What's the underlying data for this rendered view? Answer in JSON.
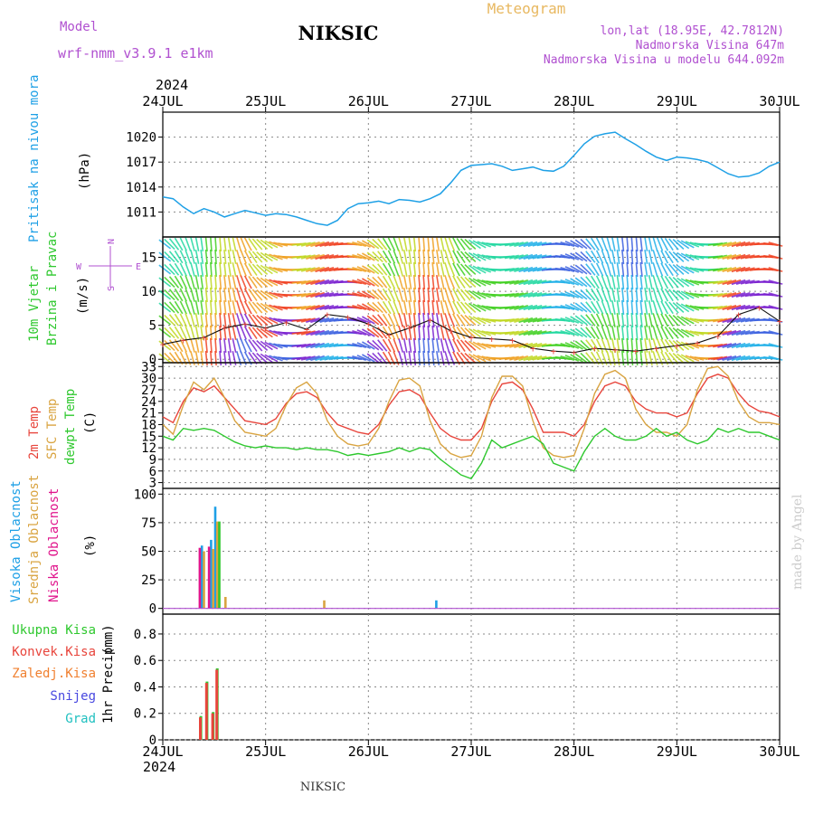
{
  "header": {
    "station": "NIKSIC",
    "model_label": "Model",
    "model_name": "wrf-nmm_v3.9.1  e1km",
    "meteogram": "Meteogram",
    "lonlat": "lon,lat (18.95E, 42.7812N)",
    "altitude": "Nadmorska Visina 647m",
    "model_altitude": "Nadmorska Visina u modelu 644.092m",
    "year": "2024",
    "footer": "NIKSIC",
    "credit": "made by Angel"
  },
  "colors": {
    "pressure": "#1ea0e6",
    "temp2m": "#e8453c",
    "sfc": "#d9a441",
    "dewpt": "#2ec82e",
    "high_cloud": "#1ea0e6",
    "mid_cloud": "#d9a441",
    "low_cloud": "#e0158c",
    "total_rain": "#2ec82e",
    "conv_rain": "#e8453c",
    "ice": "#f08030",
    "snow": "#4848e0",
    "hail": "#20c0c0",
    "model": "#b050d0"
  },
  "chart_data": [
    {
      "type": "line",
      "panel": "pressure",
      "ylabel_1": "Pritisak na nivou mora",
      "ylabel_2": "(hPa)",
      "x_categories": [
        "24JUL",
        "25JUL",
        "26JUL",
        "27JUL",
        "28JUL",
        "29JUL",
        "30JUL"
      ],
      "ylim": [
        1008,
        1023
      ],
      "yticks": [
        1011,
        1014,
        1017,
        1020
      ],
      "grid": true,
      "series": [
        {
          "x": [
            0,
            0.1,
            0.2,
            0.3,
            0.4,
            0.5,
            0.6,
            0.7,
            0.8,
            0.9,
            1.0,
            1.1,
            1.2,
            1.3,
            1.4,
            1.5,
            1.6,
            1.7,
            1.8,
            1.9,
            2.0,
            2.1,
            2.2,
            2.3,
            2.4,
            2.5,
            2.6,
            2.7,
            2.8,
            2.9,
            3.0,
            3.1,
            3.2,
            3.3,
            3.4,
            3.5,
            3.6,
            3.7,
            3.8,
            3.9,
            4.0,
            4.1,
            4.2,
            4.3,
            4.4,
            4.5,
            4.6,
            4.7,
            4.8,
            4.9,
            5.0,
            5.1,
            5.2,
            5.3,
            5.4,
            5.5,
            5.6,
            5.7,
            5.8,
            5.9,
            6.0
          ],
          "y": [
            1012.8,
            1012.6,
            1011.6,
            1010.8,
            1011.4,
            1011.0,
            1010.4,
            1010.8,
            1011.2,
            1010.9,
            1010.6,
            1010.8,
            1010.7,
            1010.4,
            1010.0,
            1009.6,
            1009.4,
            1010.0,
            1011.4,
            1012.0,
            1012.1,
            1012.3,
            1012.0,
            1012.5,
            1012.4,
            1012.2,
            1012.6,
            1013.2,
            1014.5,
            1016.0,
            1016.6,
            1016.7,
            1016.8,
            1016.5,
            1016.0,
            1016.2,
            1016.4,
            1016.0,
            1015.9,
            1016.5,
            1017.8,
            1019.2,
            1020.1,
            1020.4,
            1020.6,
            1019.8,
            1019.1,
            1018.3,
            1017.6,
            1017.2,
            1017.6,
            1017.5,
            1017.3,
            1017.0,
            1016.3,
            1015.6,
            1015.2,
            1015.3,
            1015.7,
            1016.5,
            1017.0
          ]
        }
      ]
    },
    {
      "type": "line",
      "panel": "wind",
      "ylabel_1": "10m Vjetar",
      "ylabel_2": "Brzina i Pravac",
      "ylabel_3": "(m/s)",
      "compass": {
        "n": "N",
        "s": "S",
        "e": "E",
        "w": "W"
      },
      "ylim": [
        -0.5,
        18
      ],
      "yticks": [
        0,
        5,
        10,
        15
      ],
      "grid": true,
      "series": [
        {
          "x": [
            0,
            0.2,
            0.4,
            0.6,
            0.8,
            1.0,
            1.2,
            1.4,
            1.6,
            1.8,
            2.0,
            2.2,
            2.4,
            2.6,
            2.8,
            3.0,
            3.2,
            3.4,
            3.6,
            3.8,
            4.0,
            4.2,
            4.4,
            4.6,
            4.8,
            5.0,
            5.2,
            5.4,
            5.6,
            5.8,
            6.0
          ],
          "y": [
            2.2,
            2.8,
            3.2,
            4.6,
            5.2,
            4.6,
            5.4,
            4.4,
            6.6,
            6.2,
            5.2,
            3.6,
            4.6,
            5.8,
            4.2,
            3.2,
            3.0,
            2.8,
            1.6,
            1.2,
            1.0,
            1.6,
            1.4,
            1.2,
            1.6,
            2.0,
            2.4,
            3.4,
            6.6,
            7.6,
            5.6
          ]
        }
      ]
    },
    {
      "type": "line",
      "panel": "temperature",
      "ylabel_1": "2m Temp",
      "ylabel_2": "SFC Temp",
      "ylabel_3": "dewpt Temp",
      "ylabel_4": "(C)",
      "ylim": [
        1.5,
        34
      ],
      "yticks": [
        3,
        6,
        9,
        12,
        15,
        18,
        21,
        24,
        27,
        30,
        33
      ],
      "grid": true,
      "series": [
        {
          "name": "2m Temp",
          "x": [
            0,
            0.1,
            0.2,
            0.3,
            0.4,
            0.5,
            0.6,
            0.7,
            0.8,
            0.9,
            1.0,
            1.1,
            1.2,
            1.3,
            1.4,
            1.5,
            1.6,
            1.7,
            1.8,
            1.9,
            2.0,
            2.1,
            2.2,
            2.3,
            2.4,
            2.5,
            2.6,
            2.7,
            2.8,
            2.9,
            3.0,
            3.1,
            3.2,
            3.3,
            3.4,
            3.5,
            3.6,
            3.7,
            3.8,
            3.9,
            4.0,
            4.1,
            4.2,
            4.3,
            4.4,
            4.5,
            4.6,
            4.7,
            4.8,
            4.9,
            5.0,
            5.1,
            5.2,
            5.3,
            5.4,
            5.5,
            5.6,
            5.7,
            5.8,
            5.9,
            6.0
          ],
          "y": [
            20,
            18.5,
            24,
            27.5,
            26.5,
            28,
            25,
            22,
            19,
            18.5,
            18,
            19.5,
            23.5,
            26,
            26.5,
            25,
            21,
            18,
            17,
            16,
            15.5,
            18,
            23,
            26.5,
            27,
            25.5,
            21,
            17,
            15,
            14,
            14,
            17,
            24,
            28.5,
            29,
            27,
            22,
            16,
            16,
            16,
            15,
            18,
            24,
            28,
            29,
            28,
            24,
            22,
            21,
            21,
            20,
            21,
            26,
            30,
            31,
            30,
            26,
            23,
            21.5,
            21,
            20
          ]
        },
        {
          "name": "SFC Temp",
          "x": [
            0,
            0.1,
            0.2,
            0.3,
            0.4,
            0.5,
            0.6,
            0.7,
            0.8,
            0.9,
            1.0,
            1.1,
            1.2,
            1.3,
            1.4,
            1.5,
            1.6,
            1.7,
            1.8,
            1.9,
            2.0,
            2.1,
            2.2,
            2.3,
            2.4,
            2.5,
            2.6,
            2.7,
            2.8,
            2.9,
            3.0,
            3.1,
            3.2,
            3.3,
            3.4,
            3.5,
            3.6,
            3.7,
            3.8,
            3.9,
            4.0,
            4.1,
            4.2,
            4.3,
            4.4,
            4.5,
            4.6,
            4.7,
            4.8,
            4.9,
            5.0,
            5.1,
            5.2,
            5.3,
            5.4,
            5.5,
            5.6,
            5.7,
            5.8,
            5.9,
            6.0
          ],
          "y": [
            18,
            15.5,
            23,
            29,
            27,
            30,
            25,
            19,
            16,
            15.5,
            15,
            17,
            23,
            27.5,
            29,
            26,
            19,
            15,
            13,
            12.5,
            13,
            17,
            24,
            29.5,
            30,
            28,
            19,
            13,
            10.5,
            9.5,
            10,
            15,
            25,
            30.5,
            30.5,
            28,
            19,
            12,
            10,
            9.5,
            10,
            17,
            26,
            31,
            32,
            30,
            22,
            18,
            16,
            16,
            15,
            18,
            27,
            32.5,
            33,
            30.5,
            24,
            20,
            18.5,
            18.5,
            18
          ]
        },
        {
          "name": "dewpt Temp",
          "x": [
            0,
            0.1,
            0.2,
            0.3,
            0.4,
            0.5,
            0.6,
            0.7,
            0.8,
            0.9,
            1.0,
            1.1,
            1.2,
            1.3,
            1.4,
            1.5,
            1.6,
            1.7,
            1.8,
            1.9,
            2.0,
            2.1,
            2.2,
            2.3,
            2.4,
            2.5,
            2.6,
            2.7,
            2.8,
            2.9,
            3.0,
            3.1,
            3.2,
            3.3,
            3.4,
            3.5,
            3.6,
            3.7,
            3.8,
            3.9,
            4.0,
            4.1,
            4.2,
            4.3,
            4.4,
            4.5,
            4.6,
            4.7,
            4.8,
            4.9,
            5.0,
            5.1,
            5.2,
            5.3,
            5.4,
            5.5,
            5.6,
            5.7,
            5.8,
            5.9,
            6.0
          ],
          "y": [
            15,
            14,
            17,
            16.5,
            17,
            16.5,
            15,
            13.5,
            12.5,
            12,
            12.5,
            12,
            12,
            11.5,
            12,
            11.5,
            11.5,
            11,
            10,
            10.5,
            10,
            10.5,
            11,
            12,
            11,
            12,
            11.5,
            9,
            7,
            5,
            4,
            8,
            14,
            12,
            13,
            14,
            15,
            13,
            8,
            7,
            6,
            11,
            15,
            17,
            15,
            14,
            14,
            15,
            17,
            15,
            16,
            14,
            13,
            14,
            17,
            16,
            17,
            16,
            16,
            15,
            14
          ]
        }
      ]
    },
    {
      "type": "bar",
      "panel": "cloud",
      "ylabel_1": "Visoka Oblacnost",
      "ylabel_2": "Srednja Oblacnost",
      "ylabel_3": "Niska Oblacnost",
      "ylabel_4": "(%)",
      "ylim": [
        -5,
        105
      ],
      "yticks": [
        0,
        25,
        50,
        75,
        100
      ],
      "grid": true,
      "series": [
        {
          "name": "Visoka Oblacnost",
          "x": [
            0.38,
            0.47,
            0.51,
            2.66
          ],
          "values": [
            55,
            60,
            89,
            7
          ]
        },
        {
          "name": "Srednja Oblacnost",
          "x": [
            0.4,
            0.49,
            0.53,
            0.61,
            1.57
          ],
          "values": [
            50,
            52,
            76,
            10,
            7
          ]
        },
        {
          "name": "Niska Oblacnost",
          "x": [
            0.36,
            0.45
          ],
          "values": [
            53,
            54
          ]
        },
        {
          "name": "green",
          "x": [
            0.55
          ],
          "values": [
            76
          ]
        }
      ]
    },
    {
      "type": "bar",
      "panel": "precip",
      "ylabel_1": "1hr Precip",
      "ylabel_2": "(mm)",
      "legend": [
        "Ukupna Kisa",
        "Konvek.Kisa",
        "Zaledj.Kisa",
        "Snijeg",
        "Grad"
      ],
      "ylim": [
        0,
        0.95
      ],
      "yticks": [
        0,
        0.2,
        0.4,
        0.6,
        0.8
      ],
      "grid": true,
      "series": [
        {
          "name": "Ukupna Kisa",
          "x": [
            0.37,
            0.43,
            0.49,
            0.53
          ],
          "values": [
            0.18,
            0.44,
            0.21,
            0.54
          ]
        },
        {
          "name": "Konvek.Kisa",
          "x": [
            0.365,
            0.425,
            0.485,
            0.525
          ],
          "values": [
            0.17,
            0.43,
            0.2,
            0.53
          ]
        }
      ]
    }
  ]
}
